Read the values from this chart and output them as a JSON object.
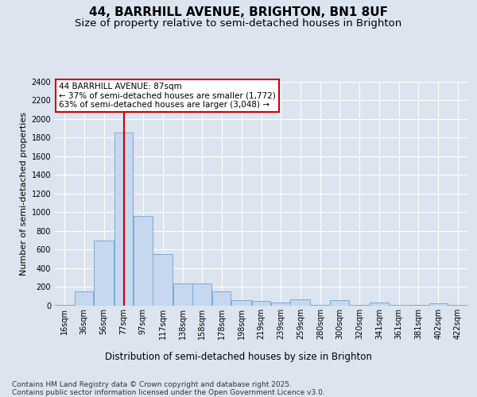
{
  "title1": "44, BARRHILL AVENUE, BRIGHTON, BN1 8UF",
  "title2": "Size of property relative to semi-detached houses in Brighton",
  "xlabel": "Distribution of semi-detached houses by size in Brighton",
  "ylabel": "Number of semi-detached properties",
  "annotation_title": "44 BARRHILL AVENUE: 87sqm",
  "annotation_line1": "← 37% of semi-detached houses are smaller (1,772)",
  "annotation_line2": "63% of semi-detached houses are larger (3,048) →",
  "footnote1": "Contains HM Land Registry data © Crown copyright and database right 2025.",
  "footnote2": "Contains public sector information licensed under the Open Government Licence v3.0.",
  "property_size_sqm": 87,
  "bar_categories": [
    "16sqm",
    "36sqm",
    "56sqm",
    "77sqm",
    "97sqm",
    "117sqm",
    "138sqm",
    "158sqm",
    "178sqm",
    "198sqm",
    "219sqm",
    "239sqm",
    "259sqm",
    "280sqm",
    "300sqm",
    "320sqm",
    "341sqm",
    "361sqm",
    "381sqm",
    "402sqm",
    "422sqm"
  ],
  "bar_left_edges": [
    16,
    36,
    56,
    77,
    97,
    117,
    138,
    158,
    178,
    198,
    219,
    239,
    259,
    280,
    300,
    320,
    341,
    361,
    381,
    402,
    422
  ],
  "bar_widths": [
    20,
    20,
    21,
    20,
    20,
    21,
    20,
    20,
    20,
    21,
    20,
    20,
    21,
    20,
    20,
    21,
    20,
    20,
    21,
    20,
    20
  ],
  "bar_values": [
    10,
    150,
    700,
    1850,
    960,
    550,
    240,
    240,
    150,
    60,
    55,
    30,
    70,
    5,
    60,
    5,
    35,
    5,
    5,
    25,
    5
  ],
  "bar_color": "#c5d8ef",
  "bar_edgecolor": "#7aaad4",
  "vline_color": "#cc0000",
  "ylim_max": 2400,
  "bg_color": "#dce4f0",
  "grid_color": "#ffffff",
  "annot_box_facecolor": "#ffffff",
  "annot_box_edgecolor": "#cc0000",
  "title_fontsize": 11,
  "subtitle_fontsize": 9.5,
  "ylabel_fontsize": 8,
  "xlabel_fontsize": 8.5,
  "tick_fontsize": 7,
  "annot_fontsize": 7.5,
  "footnote_fontsize": 6.5
}
